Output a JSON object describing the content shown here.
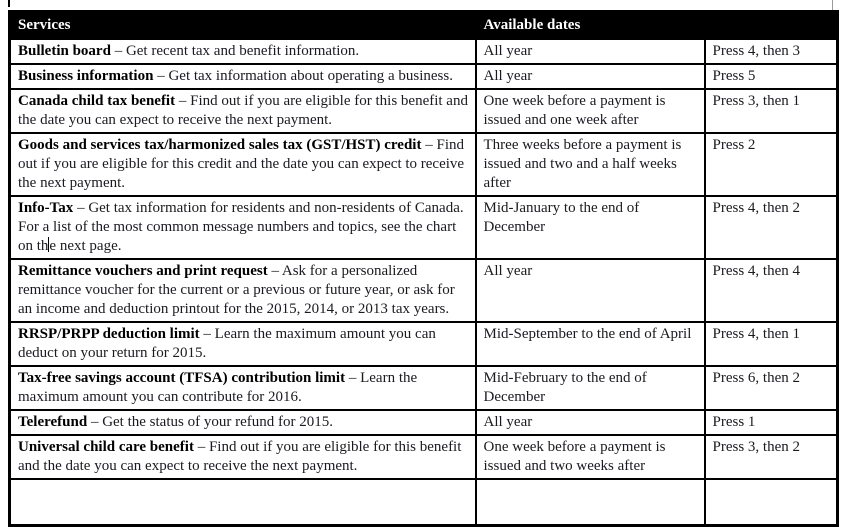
{
  "page": {
    "background": "#ffffff",
    "header_bg": "#000000",
    "header_text_color": "#ffffff",
    "body_text_color": "#1a1a22"
  },
  "table": {
    "header": {
      "services": "Services",
      "dates": "Available dates",
      "keys": ""
    },
    "rows": [
      {
        "title": "Bulletin board",
        "desc": "– Get recent tax and benefit information.",
        "dates": "All year",
        "keys": "Press 4, then 3"
      },
      {
        "title": "Business information",
        "desc": "– Get tax information about operating a business.",
        "dates": "All year",
        "keys": "Press 5"
      },
      {
        "title": "Canada child tax benefit",
        "desc": "– Find out if you are eligible for this benefit and the date you can expect to receive the next payment.",
        "dates": "One week before a payment is issued and one week after",
        "keys": "Press 3, then 1"
      },
      {
        "title": "Goods and services tax/harmonized sales tax (GST/HST) credit",
        "desc": "– Find out if you are eligible for this credit and the date you can expect to receive the next payment.",
        "dates": "Three weeks before a payment is issued and two and a half weeks after",
        "keys": "Press 2"
      },
      {
        "title": "Info-Tax",
        "desc_before_caret": "– Get tax information for residents and non-residents of Canada. For a list of the most common message numbers and topics, see the chart on th",
        "desc_after_caret": "e next page.",
        "dates": "Mid-January to the end of December",
        "keys": "Press 4, then 2"
      },
      {
        "title": "Remittance vouchers and print request",
        "desc": "– Ask for a personalized remittance voucher for the current or a previous or future year, or ask for an income and deduction printout for the 2015, 2014, or 2013 tax years.",
        "dates": "All year",
        "keys": "Press 4, then 4"
      },
      {
        "title": "RRSP/PRPP deduction limit",
        "desc": "– Learn the maximum amount you can deduct on your return for 2015.",
        "dates": "Mid-September to the end of April",
        "keys": "Press 4, then 1"
      },
      {
        "title": "Tax-free savings account (TFSA) contribution limit",
        "desc": "– Learn the maximum amount you can contribute for 2016.",
        "dates": "Mid-February to the end of December",
        "keys": "Press 6, then 2"
      },
      {
        "title": "Telerefund",
        "desc": "– Get the status of your refund for 2015.",
        "dates": "All year",
        "keys": "Press 1"
      },
      {
        "title": "Universal child care benefit",
        "desc": "– Find out if you are eligible for this benefit and the date you can expect to receive the next payment.",
        "dates": "One week before a payment is issued and two weeks after",
        "keys": "Press 3, then 2"
      }
    ]
  }
}
